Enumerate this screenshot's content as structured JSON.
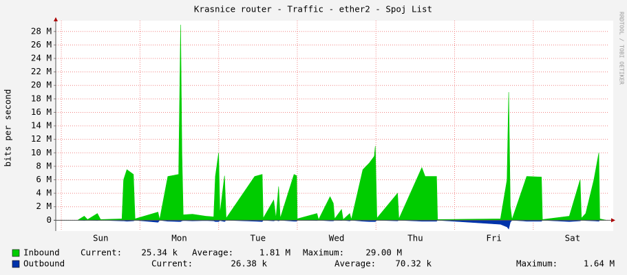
{
  "chart_data": {
    "type": "area",
    "title": "Krasnice router - Traffic - ether2 - Spoj List",
    "y_label": "bits per second",
    "watermark": "RRDTOOL / TOBI OETIKER",
    "x": [
      -1.7,
      5,
      7,
      8,
      11,
      12,
      18.5,
      19,
      20,
      22,
      22.5,
      29.5,
      30,
      32.5,
      35.8,
      36.4,
      36.8,
      37.2,
      40,
      44,
      46.5,
      47,
      48,
      48.4,
      49.8,
      50.3,
      59,
      61.3,
      61.6,
      64.8,
      65.5,
      66.3,
      66.8,
      71,
      71.8,
      72,
      78,
      78.5,
      82,
      83,
      83.4,
      85.5,
      86,
      88,
      88.5,
      92,
      94,
      95.5,
      95.8,
      96.3,
      102.6,
      103,
      110,
      111,
      114.5,
      114.8,
      134,
      136,
      136.5,
      137,
      137.5,
      142,
      146.5,
      146.8,
      155,
      158.3,
      158.7,
      160,
      162.5,
      164,
      164.3,
      166.3
    ],
    "series": [
      {
        "name": "Inbound",
        "color": "#00cc00",
        "values": [
          0,
          0,
          0.6,
          0.1,
          1.0,
          0.1,
          0.2,
          6.0,
          7.5,
          6.8,
          0.2,
          1.2,
          0.1,
          6.5,
          6.8,
          29.0,
          10.0,
          0.8,
          0.9,
          0.6,
          0.5,
          6.5,
          10.0,
          1.0,
          6.6,
          0.3,
          6.5,
          6.8,
          0.3,
          3.0,
          0.3,
          5.0,
          0.3,
          6.8,
          6.6,
          0.2,
          1.0,
          0.1,
          3.5,
          2.5,
          0.2,
          1.6,
          0.1,
          1.0,
          0.1,
          7.5,
          8.5,
          9.5,
          11.0,
          0.3,
          4.0,
          0.2,
          7.8,
          6.5,
          6.5,
          0.1,
          0.2,
          6.0,
          19.0,
          2.0,
          0.1,
          6.5,
          6.4,
          0.1,
          0.6,
          6.0,
          0.3,
          1.0,
          6.0,
          10.0,
          0.2,
          0
        ],
        "stats": [
          {
            "label": "Current:",
            "value": "25.34 k"
          },
          {
            "label": "Average:",
            "value": "1.81 M"
          },
          {
            "label": "Maximum:",
            "value": "29.00 M"
          }
        ]
      },
      {
        "name": "Outbound",
        "color": "#0033aa",
        "values": [
          0,
          0,
          -0.05,
          0,
          -0.05,
          0,
          -0.1,
          -0.1,
          -0.15,
          -0.1,
          0,
          -0.3,
          0,
          -0.15,
          -0.2,
          -0.2,
          -0.1,
          -0.05,
          -0.1,
          -0.05,
          -0.1,
          -0.2,
          -0.2,
          -0.05,
          -0.2,
          0,
          -0.15,
          -0.2,
          0,
          -0.1,
          0,
          -0.1,
          0,
          -0.15,
          -0.15,
          0,
          -0.05,
          0,
          -0.1,
          -0.1,
          0,
          -0.05,
          0,
          -0.1,
          0,
          -0.15,
          -0.2,
          -0.2,
          -0.2,
          0,
          -0.1,
          0,
          -0.15,
          -0.15,
          -0.15,
          0,
          -0.6,
          -1.0,
          -1.3,
          -0.3,
          0,
          -0.15,
          -0.15,
          0,
          -0.2,
          -0.1,
          0,
          -0.05,
          -0.1,
          -0.15,
          0,
          0
        ],
        "stats": [
          {
            "label": "Current:",
            "value": "26.38 k"
          },
          {
            "label": "Average:",
            "value": "70.32 k"
          },
          {
            "label": "Maximum:",
            "value": "1.64 M"
          }
        ]
      }
    ],
    "xlim": [
      -1.7,
      166.3
    ],
    "xticks": [
      {
        "value": 12,
        "label": "Sun"
      },
      {
        "value": 36,
        "label": "Mon"
      },
      {
        "value": 60,
        "label": "Tue"
      },
      {
        "value": 84,
        "label": "Wed"
      },
      {
        "value": 108,
        "label": "Thu"
      },
      {
        "value": 132,
        "label": "Fri"
      },
      {
        "value": 156,
        "label": "Sat"
      }
    ],
    "ylim": [
      -1.6,
      29.1
    ],
    "yticks": [
      0,
      {
        "value": 2,
        "label": "2 M"
      },
      {
        "value": 4,
        "label": "4 M"
      },
      {
        "value": 6,
        "label": "6 M"
      },
      {
        "value": 8,
        "label": "8 M"
      },
      {
        "value": 10,
        "label": "10 M"
      },
      {
        "value": 12,
        "label": "12 M"
      },
      {
        "value": 14,
        "label": "14 M"
      },
      {
        "value": 16,
        "label": "16 M"
      },
      {
        "value": 18,
        "label": "18 M"
      },
      {
        "value": 20,
        "label": "20 M"
      },
      {
        "value": 22,
        "label": "22 M"
      },
      {
        "value": 24,
        "label": "24 M"
      },
      {
        "value": 26,
        "label": "26 M"
      },
      {
        "value": 28,
        "label": "28 M"
      }
    ],
    "grid": true
  }
}
